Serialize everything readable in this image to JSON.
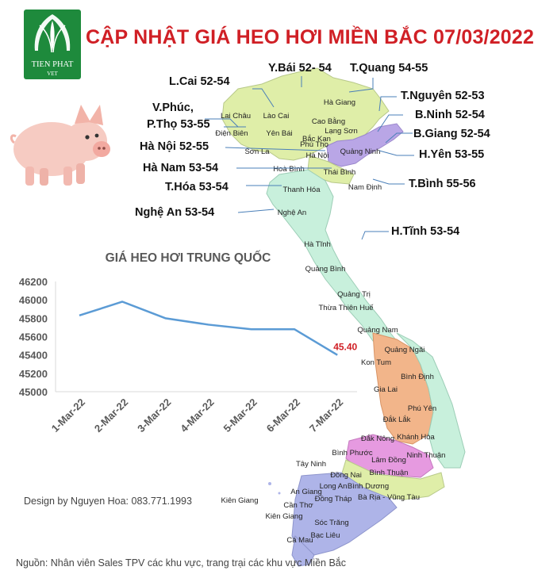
{
  "header": {
    "title": "CẬP NHẬT GIÁ HEO HƠI MIỀN BẮC 07/03/2022",
    "logo_text": "TIEN PHAT",
    "logo_subtext": "VET"
  },
  "price_labels": [
    {
      "id": "lcai",
      "text": "L.Cai 52-54"
    },
    {
      "id": "ybai",
      "text": "Y.Bái 52- 54"
    },
    {
      "id": "tquang",
      "text": "T.Quang 54-55"
    },
    {
      "id": "vphuc",
      "text": "V.Phúc,"
    },
    {
      "id": "ptho",
      "text": "P.Thọ 53-55"
    },
    {
      "id": "tnguyen",
      "text": "T.Nguyên 52-53"
    },
    {
      "id": "bninh",
      "text": "B.Ninh 52-54"
    },
    {
      "id": "bgiang",
      "text": "B.Giang 52-54"
    },
    {
      "id": "hanoi",
      "text": "Hà Nội 52-55"
    },
    {
      "id": "hyen",
      "text": "H.Yên 53-55"
    },
    {
      "id": "hanam",
      "text": "Hà Nam 53-54"
    },
    {
      "id": "thoa",
      "text": "T.Hóa 53-54"
    },
    {
      "id": "tbinh",
      "text": "T.Bình 55-56"
    },
    {
      "id": "nghean",
      "text": "Nghệ An 53-54"
    },
    {
      "id": "htinh",
      "text": "H.Tĩnh 53-54"
    }
  ],
  "map_provinces": [
    "Hà Giang",
    "Lai Châu",
    "Lào Cai",
    "Cao Bằng",
    "Bắc Kạn",
    "Điện Biên",
    "Yên Bái",
    "Lạng Sơn",
    "Phú Thọ",
    "Sơn La",
    "Hà Nội",
    "Quảng Ninh",
    "Hoà Bình",
    "Thái Bình",
    "Nam Định",
    "Thanh Hóa",
    "Nghệ An",
    "Hà Tĩnh",
    "Quảng Bình",
    "Quảng Trị",
    "Thừa Thiên Huế",
    "Quảng Nam",
    "Quảng Ngãi",
    "Kon Tum",
    "Bình Định",
    "Gia Lai",
    "Phú Yên",
    "Đắk Lắk",
    "Khánh Hòa",
    "Đắk Nông",
    "Bình Phước",
    "Lâm Đồng",
    "Ninh Thuận",
    "Tây Ninh",
    "Đồng Nai",
    "Bình Thuận",
    "Long An",
    "Bình Dương",
    "An Giang",
    "Đồng Tháp",
    "Bà Rịa - Vũng Tàu",
    "Kiên Giang",
    "Cần Thơ",
    "Kiên Giang",
    "Sóc Trăng",
    "Bạc Liêu",
    "Cà Mau"
  ],
  "chart_data": {
    "type": "line",
    "title": "GIÁ HEO HƠI TRUNG QUỐC",
    "categories": [
      "1-Mar-22",
      "2-Mar-22",
      "3-Mar-22",
      "4-Mar-22",
      "5-Mar-22",
      "6-Mar-22",
      "7-Mar-22"
    ],
    "values": [
      45830,
      45980,
      45800,
      45730,
      45680,
      45680,
      45400
    ],
    "ylim": [
      45000,
      46200
    ],
    "yticks": [
      45000,
      45200,
      45400,
      45600,
      45800,
      46000,
      46200
    ],
    "data_labels": [
      {
        "index": 6,
        "text": "45.40"
      }
    ],
    "line_color": "#5b9bd5",
    "data_label_color": "#d01f25",
    "grid": false,
    "legend": "none",
    "xlabel": "",
    "ylabel": ""
  },
  "footer": {
    "credit": "Design by Nguyen Hoa: 083.771.1993",
    "source": "Nguồn: Nhân viên Sales TPV các khu vực, trang trại các khu vực Miền Bắc"
  },
  "colors": {
    "title": "#d01f25",
    "logo_green": "#1e8a3c",
    "map_north": "#dfeea8",
    "map_northeast": "#b9a6e6",
    "map_central": "#c8f0dc",
    "map_highlands": "#f2b58a",
    "map_southeast": "#e69ae0",
    "map_mekong": "#aeb4e8"
  }
}
